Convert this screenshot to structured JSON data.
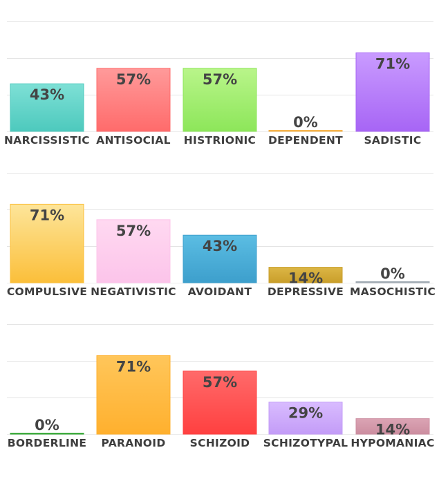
{
  "chart_data": {
    "type": "bar",
    "unit": "%",
    "ylim": [
      0,
      100
    ],
    "grid": true,
    "rows": [
      {
        "categories": [
          "NARCISSISTIC",
          "ANTISOCIAL",
          "HISTRIONIC",
          "DEPENDENT",
          "SADISTIC"
        ],
        "values": [
          43,
          57,
          57,
          0,
          71
        ],
        "colors": [
          [
            "#7ee0d6",
            "#4dc9bd"
          ],
          [
            "#ff9a9a",
            "#ff6b6b"
          ],
          [
            "#b9f58a",
            "#8de65a"
          ],
          [
            "#ffd27a",
            "#f5b24a"
          ],
          [
            "#c99bff",
            "#a765f5"
          ]
        ]
      },
      {
        "categories": [
          "COMPULSIVE",
          "NEGATIVISTIC",
          "AVOIDANT",
          "DEPRESSIVE",
          "MASOCHISTIC"
        ],
        "values": [
          71,
          57,
          43,
          14,
          0
        ],
        "colors": [
          [
            "#fde59a",
            "#fbbf3a"
          ],
          [
            "#ffd9f1",
            "#fcc4ea"
          ],
          [
            "#5bbde3",
            "#3d9fcc"
          ],
          [
            "#dcb646",
            "#c99e2a"
          ],
          [
            "#b8c0c8",
            "#9aa4ae"
          ]
        ]
      },
      {
        "categories": [
          "BORDERLINE",
          "PARANOID",
          "SCHIZOID",
          "SCHIZOTYPAL",
          "HYPOMANIAC"
        ],
        "values": [
          0,
          71,
          57,
          29,
          14
        ],
        "colors": [
          [
            "#5fc95f",
            "#3aa83a"
          ],
          [
            "#ffc65a",
            "#ffb02e"
          ],
          [
            "#ff6a6a",
            "#ff4040"
          ],
          [
            "#d9bcff",
            "#c39cf7"
          ],
          [
            "#dba4b4",
            "#cc8ea0"
          ]
        ]
      }
    ]
  }
}
